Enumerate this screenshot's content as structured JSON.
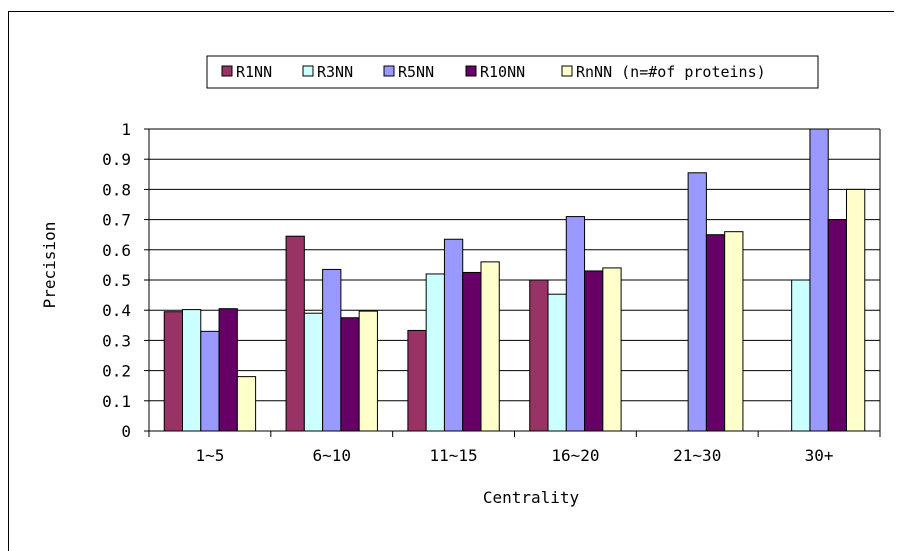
{
  "chart_data": {
    "type": "bar",
    "categories": [
      "1~5",
      "6~10",
      "11~15",
      "16~20",
      "21~30",
      "30+"
    ],
    "xlabel": "Centrality",
    "ylabel": "Precision",
    "ylim": [
      0,
      1
    ],
    "yticks": [
      "0",
      "0.1",
      "0.2",
      "0.3",
      "0.4",
      "0.5",
      "0.6",
      "0.7",
      "0.8",
      "0.9",
      "1"
    ],
    "grid": "horizontal",
    "legend_position": "top",
    "series": [
      {
        "name": "R1NN",
        "color": "#993366",
        "values": [
          0.395,
          0.645,
          0.333,
          0.5,
          0,
          0
        ]
      },
      {
        "name": "R3NN",
        "color": "#CCFFFF",
        "values": [
          0.402,
          0.39,
          0.52,
          0.453,
          0,
          0.5
        ]
      },
      {
        "name": "R5NN",
        "color": "#9999FF",
        "values": [
          0.33,
          0.535,
          0.635,
          0.71,
          0.855,
          1.0
        ]
      },
      {
        "name": "R10NN",
        "color": "#660066",
        "values": [
          0.405,
          0.375,
          0.525,
          0.53,
          0.65,
          0.7
        ]
      },
      {
        "name": "RnNN (n=#of proteins)",
        "color": "#FFFFCC",
        "values": [
          0.18,
          0.397,
          0.56,
          0.54,
          0.66,
          0.8
        ]
      }
    ]
  }
}
